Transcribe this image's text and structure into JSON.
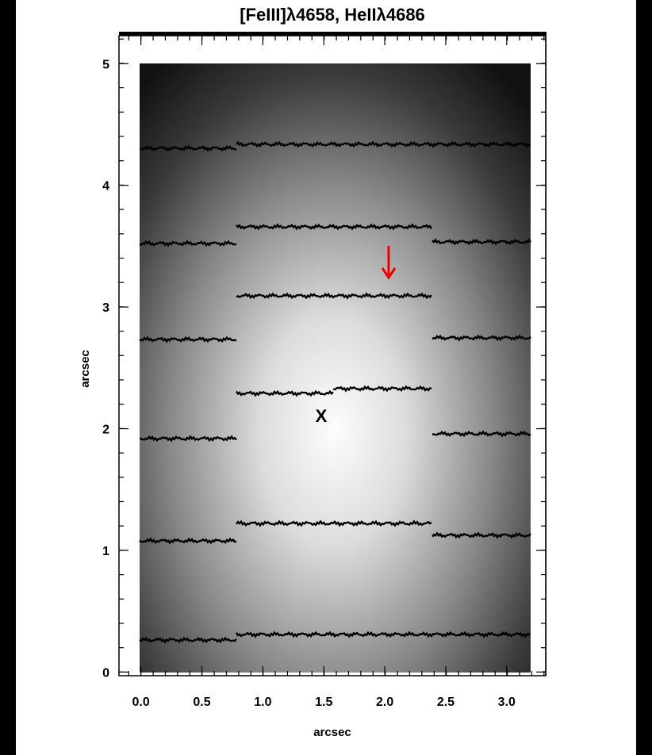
{
  "chart_data": {
    "type": "image",
    "title": "[FeIII]λ4658, HeIIλ4686",
    "xlabel": "arcsec",
    "ylabel": "arcsec",
    "annotation": "X",
    "xlim": [
      -0.18,
      3.32
    ],
    "ylim": [
      -0.03,
      5.23
    ],
    "xticks": [
      {
        "value": 0,
        "label": "0.0"
      },
      {
        "value": 0.5,
        "label": "0.5"
      },
      {
        "value": 1,
        "label": "1.0"
      },
      {
        "value": 1.5,
        "label": "1.5"
      },
      {
        "value": 2,
        "label": "2.0"
      },
      {
        "value": 2.5,
        "label": "2.5"
      },
      {
        "value": 3,
        "label": "3.0"
      }
    ],
    "yticks": [
      0,
      1,
      2,
      3,
      4,
      5
    ]
  }
}
